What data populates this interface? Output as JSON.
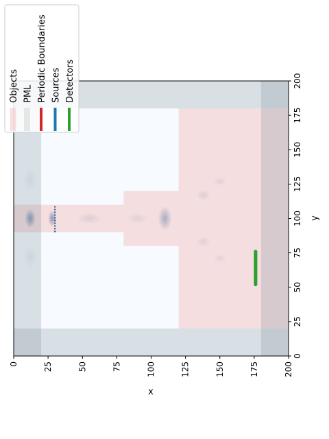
{
  "chart_data": {
    "type": "heatmap",
    "title": "",
    "xlabel": "x",
    "ylabel": "y",
    "xlim": [
      0,
      200
    ],
    "ylim": [
      0,
      200
    ],
    "x_ticks": [
      "0",
      "25",
      "50",
      "75",
      "100",
      "125",
      "150",
      "175",
      "200"
    ],
    "y_ticks": [
      "0",
      "25",
      "50",
      "75",
      "100",
      "125",
      "150",
      "175",
      "200"
    ],
    "grid": false,
    "legend_placement": "upper-left, rotated",
    "legend": [
      {
        "label": "Objects",
        "color": "#f4cccc"
      },
      {
        "label": "PML",
        "color": "#bfbfbf"
      },
      {
        "label": "Periodic Boundaries",
        "color": "#d62728"
      },
      {
        "label": "Sources",
        "color": "#1f77b4"
      },
      {
        "label": "Detectors",
        "color": "#2ca02c"
      }
    ],
    "objects": [
      {
        "name": "input-waveguide",
        "x": [
          0,
          80
        ],
        "y": [
          90,
          110
        ]
      },
      {
        "name": "taper",
        "x": [
          80,
          120
        ],
        "y": [
          80,
          120
        ]
      },
      {
        "name": "slab",
        "x": [
          120,
          200
        ],
        "y": [
          20,
          180
        ]
      }
    ],
    "pml": [
      {
        "name": "pml-left",
        "x": [
          0,
          20
        ],
        "y": [
          0,
          200
        ]
      },
      {
        "name": "pml-right",
        "x": [
          180,
          200
        ],
        "y": [
          0,
          200
        ]
      },
      {
        "name": "pml-bottom",
        "x": [
          0,
          200
        ],
        "y": [
          0,
          20
        ]
      },
      {
        "name": "pml-top",
        "x": [
          0,
          200
        ],
        "y": [
          180,
          200
        ]
      }
    ],
    "sources": [
      {
        "name": "line-source",
        "x": [
          30,
          30
        ],
        "y": [
          90,
          110
        ]
      }
    ],
    "detectors": [
      {
        "name": "line-detector",
        "x": [
          176,
          176
        ],
        "y": [
          52,
          76
        ]
      }
    ],
    "field_blobs": [
      {
        "x": 12,
        "y": 100,
        "sx": 4,
        "sy": 7,
        "opacity": 0.55
      },
      {
        "x": 28,
        "y": 100,
        "sx": 3,
        "sy": 6,
        "opacity": 0.5
      },
      {
        "x": 110,
        "y": 100,
        "sx": 5,
        "sy": 9,
        "opacity": 0.35
      },
      {
        "x": 55,
        "y": 100,
        "sx": 9,
        "sy": 4,
        "opacity": 0.12
      },
      {
        "x": 90,
        "y": 100,
        "sx": 8,
        "sy": 4,
        "opacity": 0.1
      },
      {
        "x": 138,
        "y": 117,
        "sx": 5,
        "sy": 4,
        "opacity": 0.12
      },
      {
        "x": 150,
        "y": 127,
        "sx": 5,
        "sy": 3,
        "opacity": 0.1
      },
      {
        "x": 138,
        "y": 83,
        "sx": 5,
        "sy": 4,
        "opacity": 0.1
      },
      {
        "x": 150,
        "y": 71,
        "sx": 5,
        "sy": 3,
        "opacity": 0.08
      },
      {
        "x": 12,
        "y": 128,
        "sx": 5,
        "sy": 8,
        "opacity": 0.08
      },
      {
        "x": 12,
        "y": 72,
        "sx": 5,
        "sy": 8,
        "opacity": 0.08
      }
    ]
  }
}
